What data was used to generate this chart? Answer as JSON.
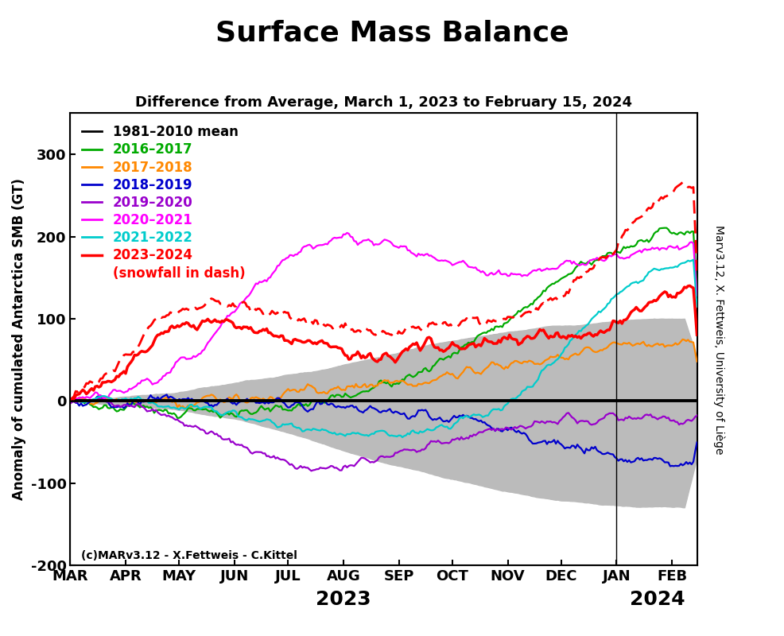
{
  "title": "Surface Mass Balance",
  "subtitle": "Difference from Average, March 1, 2023 to February 15, 2024",
  "ylabel": "Anomaly of cumulated Antarctica SMB (GT)",
  "ylabel_right": "Marv3.12, X. Fettweis, University of Liège",
  "credit": "(c)MARv3.12 - X.Fettweis - C.Kittel",
  "ylim": [
    -200,
    350
  ],
  "yticks": [
    -200,
    -100,
    0,
    100,
    200,
    300
  ],
  "month_labels": [
    "MAR",
    "APR",
    "MAY",
    "JUN",
    "JUL",
    "AUG",
    "SEP",
    "OCT",
    "NOV",
    "DEC",
    "JAN",
    "FEB"
  ],
  "month_starts": [
    0,
    31,
    61,
    92,
    122,
    153,
    184,
    214,
    245,
    275,
    306,
    337
  ],
  "n_days": 352,
  "vline_day": 306,
  "shading_color": "#bbbbbb",
  "background_color": "#ffffff",
  "colors": {
    "green": "#00aa00",
    "orange": "#ff8800",
    "dkblue": "#0000cc",
    "purple": "#9900cc",
    "magenta": "#ff00ff",
    "cyan": "#00cccc",
    "red": "#ff0000"
  }
}
